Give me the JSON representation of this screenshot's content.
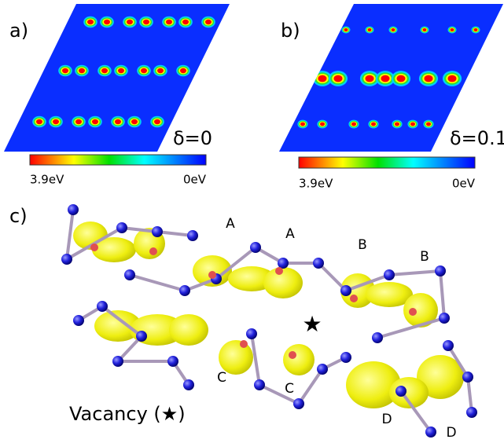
{
  "panels": [
    {
      "label": "a)",
      "delta": "δ=0",
      "scale_max": "3.9eV",
      "scale_min": "0eV"
    },
    {
      "label": "b)",
      "delta": "δ=0.1",
      "scale_max": "3.9eV",
      "scale_min": "0eV"
    }
  ],
  "structure": {
    "label": "c)",
    "sites": [
      "A",
      "A",
      "B",
      "B",
      "C",
      "C",
      "D",
      "D"
    ],
    "legend": "Vacancy (★)"
  }
}
